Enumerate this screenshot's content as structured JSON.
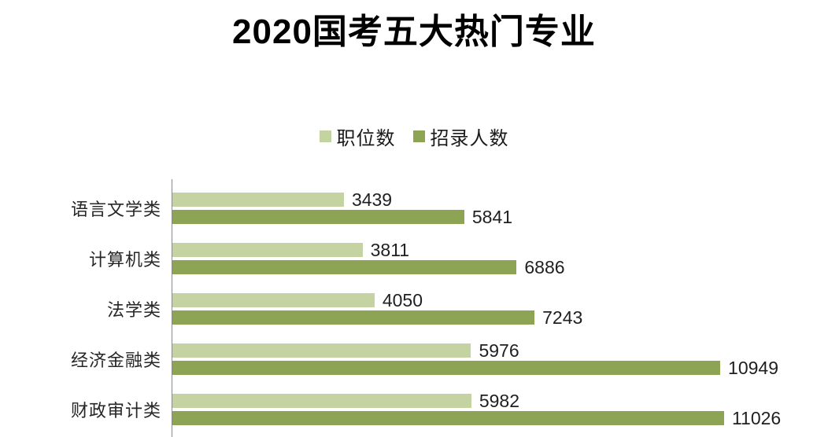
{
  "title": "2020国考五大热门专业",
  "chart_data": {
    "type": "bar",
    "orientation": "horizontal",
    "title": "2020国考五大热门专业",
    "xlabel": "",
    "ylabel": "",
    "xlim": [
      0,
      13100
    ],
    "grid": false,
    "legend_position": "top",
    "categories": [
      "语言文学类",
      "计算机类",
      "法学类",
      "经济金融类",
      "财政审计类"
    ],
    "series": [
      {
        "name": "职位数",
        "color": "#c5d2a2",
        "values": [
          3439,
          3811,
          4050,
          5976,
          5982
        ]
      },
      {
        "name": "招录人数",
        "color": "#8ca454",
        "values": [
          5841,
          6886,
          7243,
          10949,
          11026
        ]
      }
    ],
    "axis_line_color": "#898989"
  }
}
